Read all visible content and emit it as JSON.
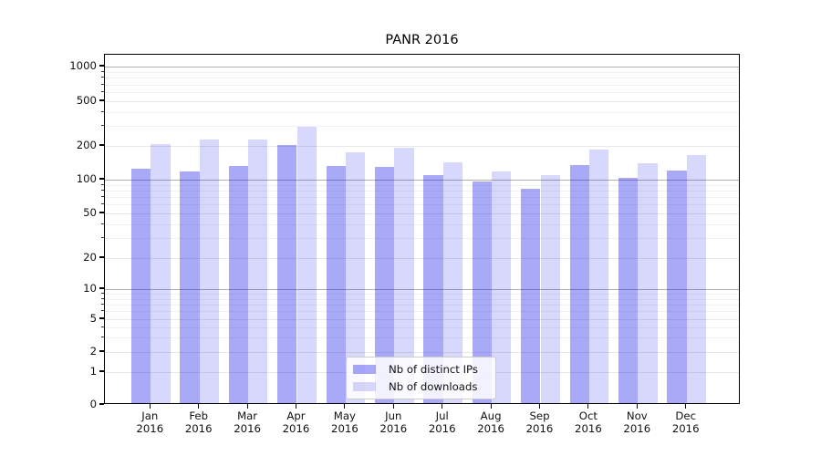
{
  "chart_data": {
    "type": "bar",
    "title": "PANR 2016",
    "categories": [
      {
        "month": "Jan",
        "year": "2016"
      },
      {
        "month": "Feb",
        "year": "2016"
      },
      {
        "month": "Mar",
        "year": "2016"
      },
      {
        "month": "Apr",
        "year": "2016"
      },
      {
        "month": "May",
        "year": "2016"
      },
      {
        "month": "Jun",
        "year": "2016"
      },
      {
        "month": "Jul",
        "year": "2016"
      },
      {
        "month": "Aug",
        "year": "2016"
      },
      {
        "month": "Sep",
        "year": "2016"
      },
      {
        "month": "Oct",
        "year": "2016"
      },
      {
        "month": "Nov",
        "year": "2016"
      },
      {
        "month": "Dec",
        "year": "2016"
      }
    ],
    "series": [
      {
        "name": "Nb of distinct IPs",
        "color": "rgba(10,10,235,0.35)",
        "values": [
          120,
          115,
          128,
          195,
          127,
          125,
          105,
          93,
          80,
          130,
          100,
          117
        ]
      },
      {
        "name": "Nb of downloads",
        "color": "rgba(10,10,235,0.16)",
        "values": [
          200,
          220,
          220,
          285,
          170,
          185,
          138,
          115,
          105,
          180,
          135,
          160
        ]
      }
    ],
    "yscale": "symlog",
    "yticks": [
      0,
      1,
      2,
      5,
      10,
      20,
      50,
      100,
      200,
      500,
      1000
    ],
    "ylim": [
      0,
      1150
    ],
    "xlabel": "",
    "ylabel": "",
    "grid": true,
    "legend_position": "lower center"
  }
}
